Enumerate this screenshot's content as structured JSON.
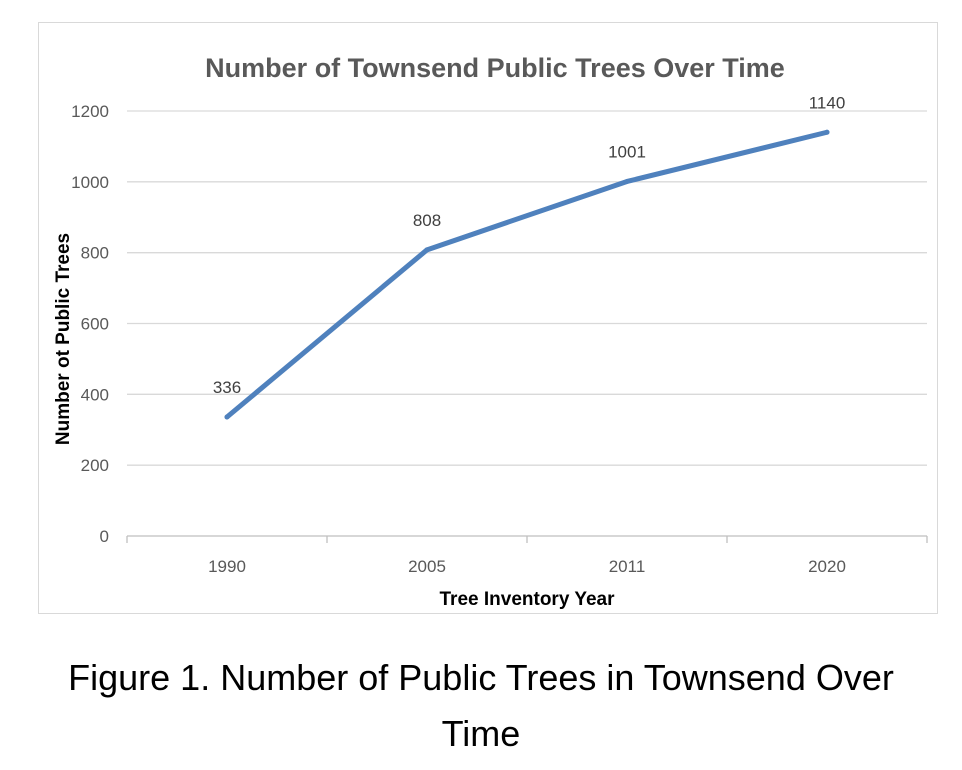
{
  "chart_data": {
    "type": "line",
    "title": "Number of Townsend Public Trees Over Time",
    "xlabel": "Tree Inventory Year",
    "ylabel": "Number ot Public Trees",
    "categories": [
      "1990",
      "2005",
      "2011",
      "2020"
    ],
    "series": [
      {
        "values": [
          336,
          808,
          1001,
          1140
        ],
        "data_labels": [
          "336",
          "808",
          "1001",
          "1140"
        ]
      }
    ],
    "ylim": [
      0,
      1200
    ],
    "yticks": [
      "0",
      "200",
      "400",
      "600",
      "800",
      "1000",
      "1200"
    ],
    "grid": true,
    "legend": "none",
    "colors": {
      "line": "#4f81bd",
      "grid": "#d9d9d9",
      "axis": "#bfbfbf"
    }
  },
  "caption": {
    "line1": "Figure 1. Number of Public Trees in Townsend Over",
    "line2": "Time"
  }
}
